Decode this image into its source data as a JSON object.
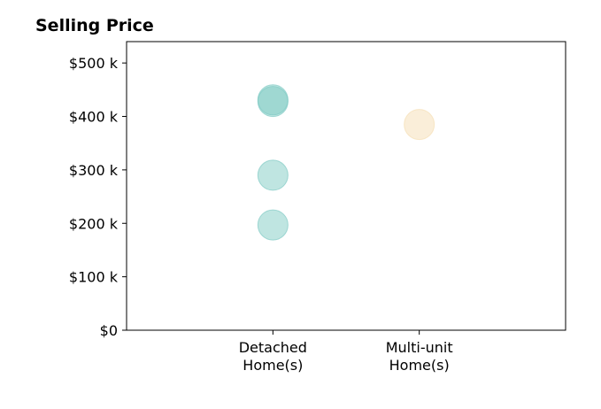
{
  "chart_data": {
    "type": "scatter",
    "title": "Selling Price",
    "xlabel": "",
    "ylabel": "",
    "categories": [
      [
        "Detached",
        "Home(s)"
      ],
      [
        "Multi-unit",
        "Home(s)"
      ]
    ],
    "xlim": [
      0,
      3
    ],
    "ylim": [
      0,
      540000
    ],
    "yticks": [
      0,
      100000,
      200000,
      300000,
      400000,
      500000
    ],
    "ytick_labels": [
      "$0",
      "$100 k",
      "$200 k",
      "$300 k",
      "$400 k",
      "$500 k"
    ],
    "grid": false,
    "legend": "none",
    "series": [
      {
        "category_index": 0,
        "color": "#80cbc4",
        "values": [
          428000,
          431000,
          290000,
          197000
        ]
      },
      {
        "category_index": 1,
        "color": "#f5deb3",
        "values": [
          385000
        ]
      }
    ]
  }
}
